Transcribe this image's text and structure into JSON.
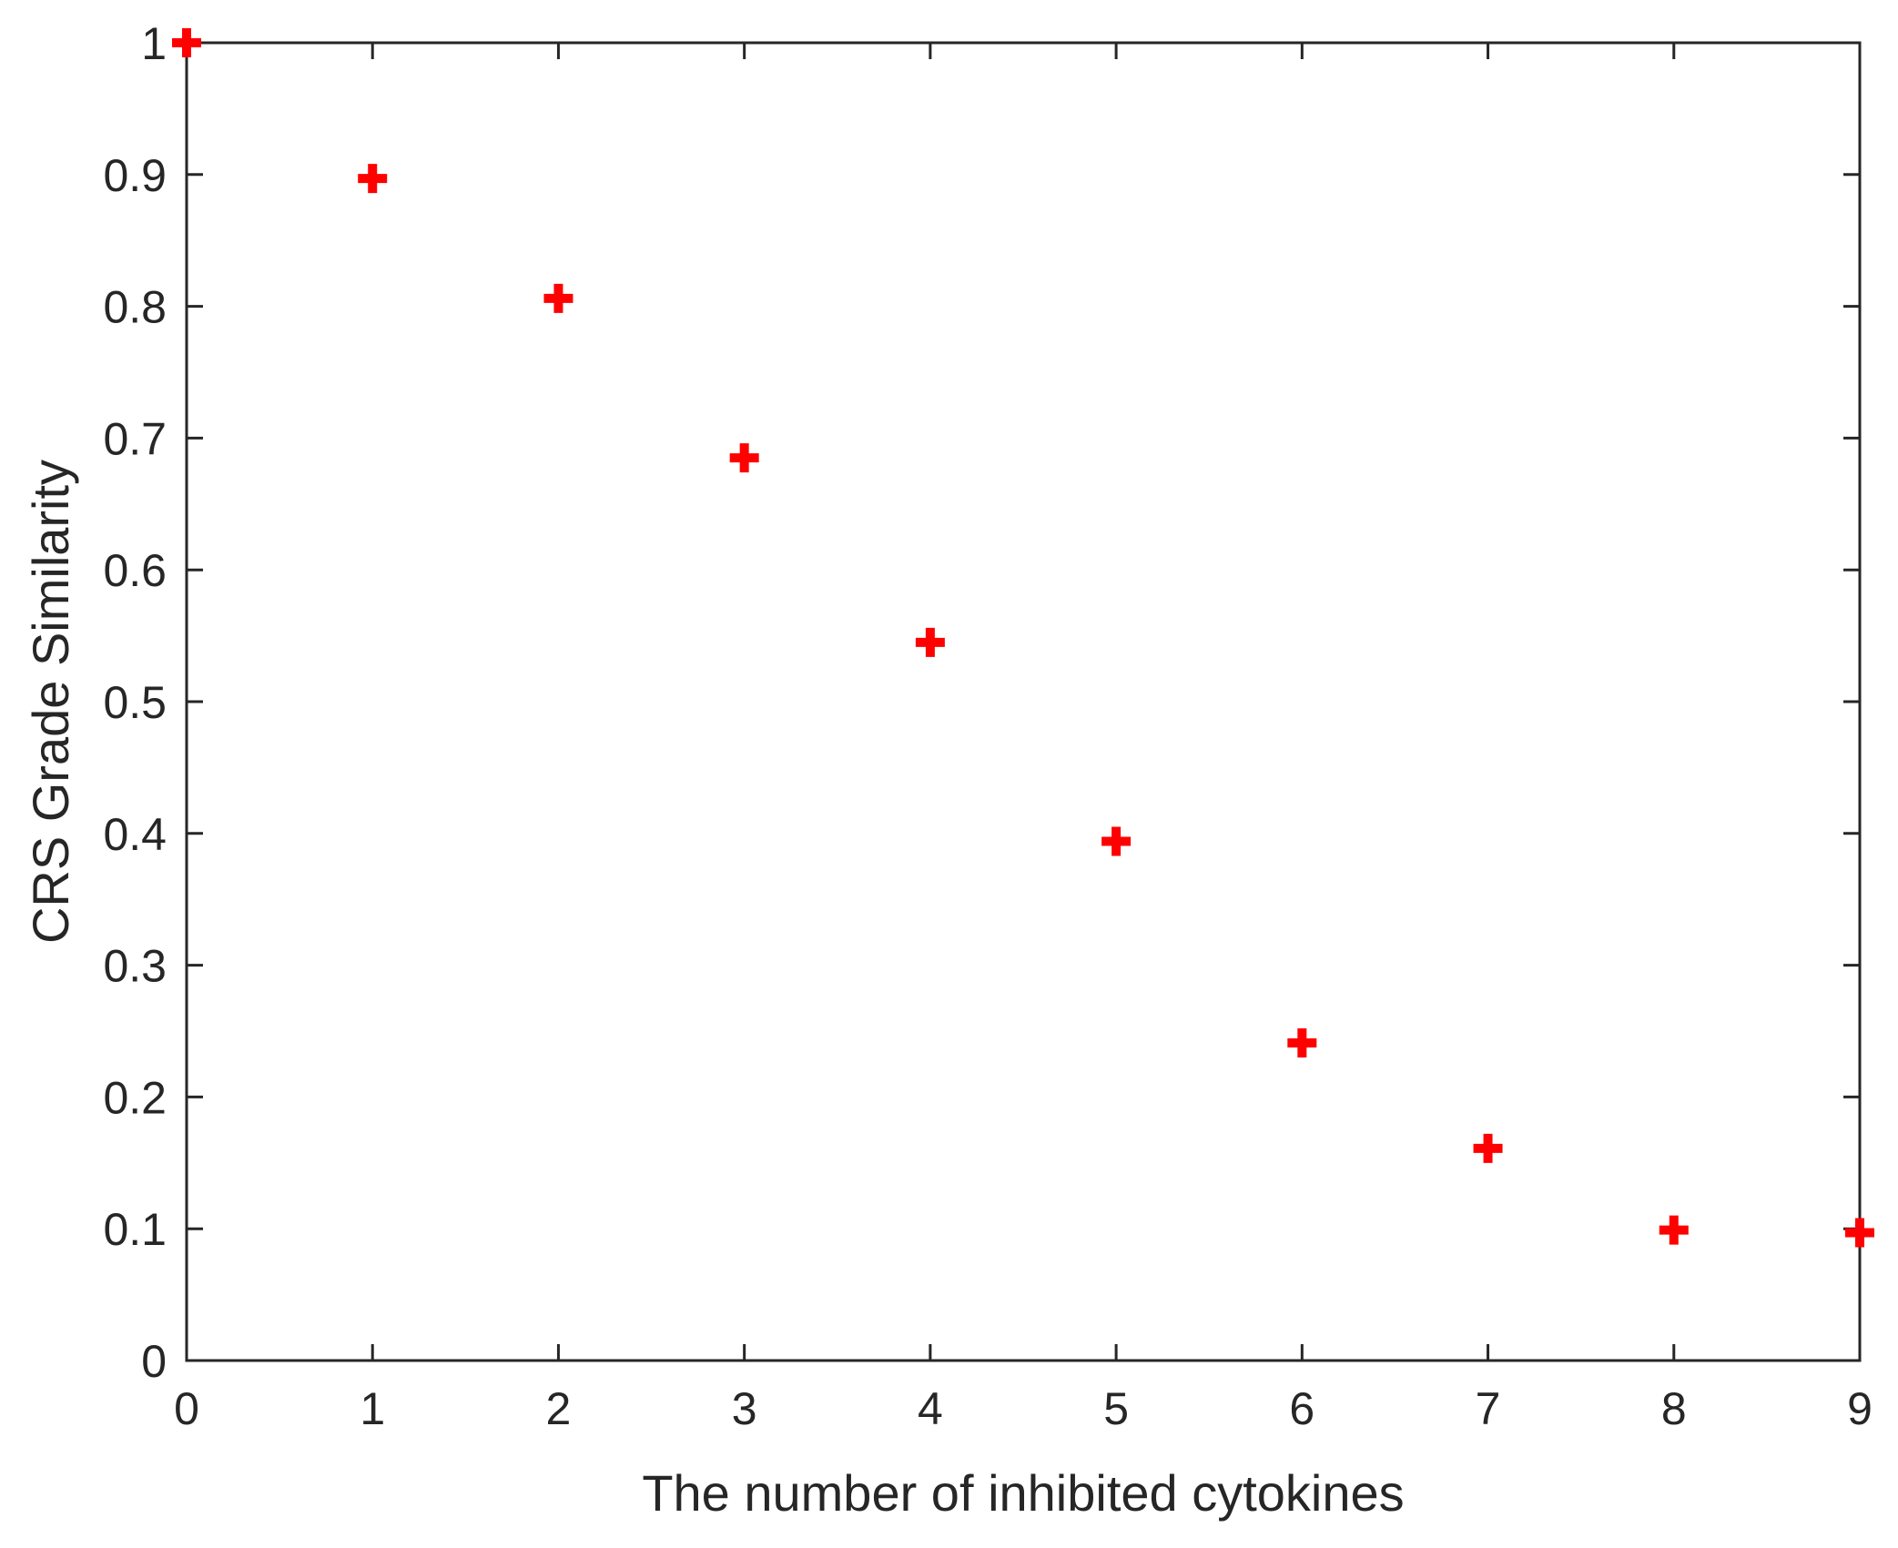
{
  "chart_data": {
    "type": "scatter",
    "title": "",
    "xlabel": "The number of inhibited cytokines",
    "ylabel": "CRS Grade Similarity",
    "xlim": [
      0,
      9
    ],
    "ylim": [
      0,
      1
    ],
    "xticks": [
      0,
      1,
      2,
      3,
      4,
      5,
      6,
      7,
      8,
      9
    ],
    "yticks": [
      0,
      0.1,
      0.2,
      0.3,
      0.4,
      0.5,
      0.6,
      0.7,
      0.8,
      0.9,
      1
    ],
    "xtick_labels": [
      "0",
      "1",
      "2",
      "3",
      "4",
      "5",
      "6",
      "7",
      "8",
      "9"
    ],
    "ytick_labels": [
      "0",
      "0.1",
      "0.2",
      "0.3",
      "0.4",
      "0.5",
      "0.6",
      "0.7",
      "0.8",
      "0.9",
      "1"
    ],
    "grid": false,
    "box": true,
    "series": [
      {
        "marker": "plus",
        "color": "#ff0000",
        "x": [
          0,
          1,
          2,
          3,
          4,
          5,
          6,
          7,
          8,
          9
        ],
        "y": [
          1.0,
          0.897,
          0.806,
          0.685,
          0.545,
          0.394,
          0.241,
          0.161,
          0.099,
          0.097
        ]
      }
    ]
  }
}
